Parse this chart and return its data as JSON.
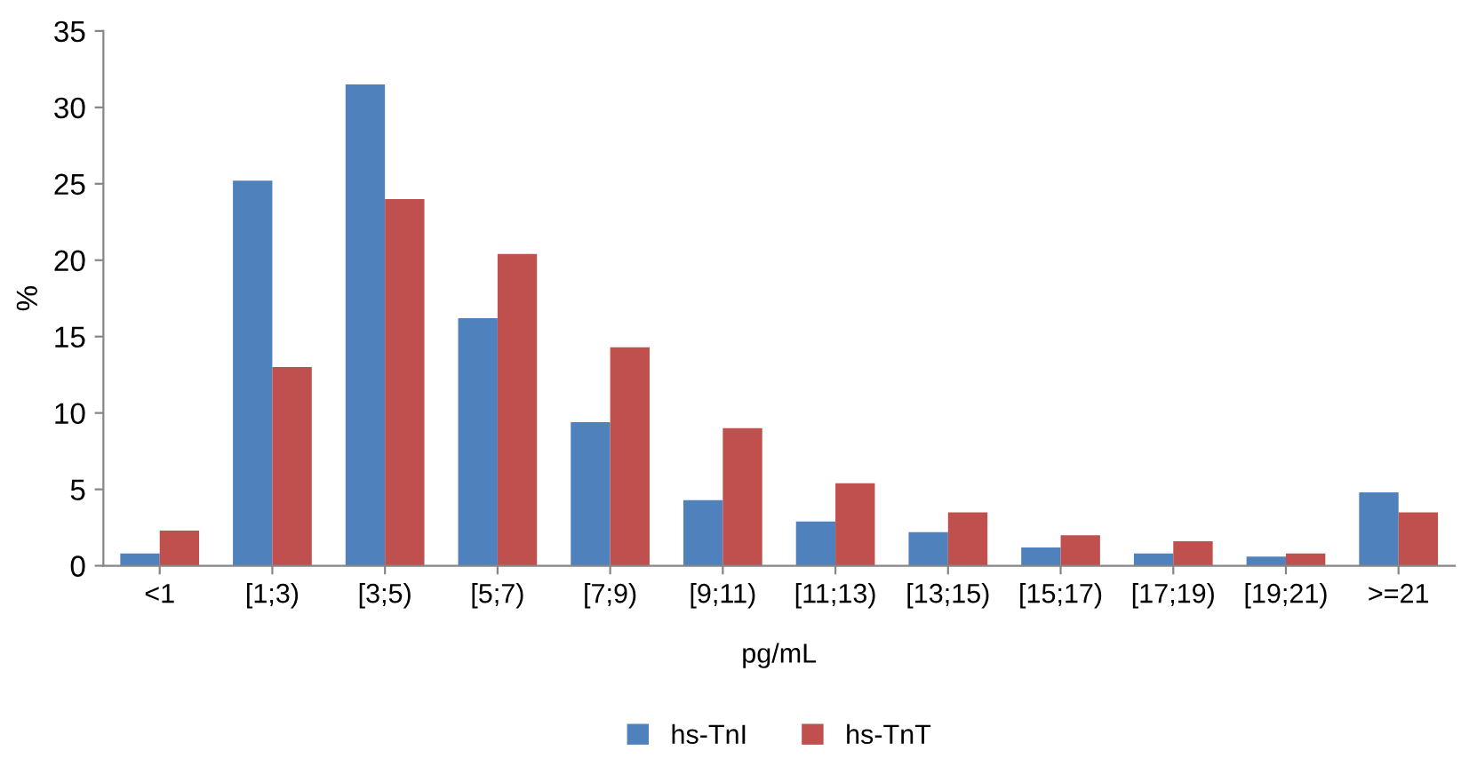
{
  "chart_data": {
    "type": "bar",
    "xlabel": "pg/mL",
    "ylabel": "%",
    "categories": [
      "<1",
      "[1;3)",
      "[3;5)",
      "[5;7)",
      "[7;9)",
      "[9;11)",
      "[11;13)",
      "[13;15)",
      "[15;17)",
      "[17;19)",
      "[19;21)",
      ">=21"
    ],
    "series": [
      {
        "name": "hs-TnI",
        "color": "#4f81bd",
        "values": [
          0.8,
          25.2,
          31.5,
          16.2,
          9.4,
          4.3,
          2.9,
          2.2,
          1.2,
          0.8,
          0.6,
          4.8
        ]
      },
      {
        "name": "hs-TnT",
        "color": "#c0504d",
        "values": [
          2.3,
          13.0,
          24.0,
          20.4,
          14.3,
          9.0,
          5.4,
          3.5,
          2.0,
          1.6,
          0.8,
          3.5
        ]
      }
    ],
    "ylim": [
      0,
      35
    ],
    "yticks": [
      0,
      5,
      10,
      15,
      20,
      25,
      30,
      35
    ],
    "grid": false,
    "legend": "bottom"
  }
}
